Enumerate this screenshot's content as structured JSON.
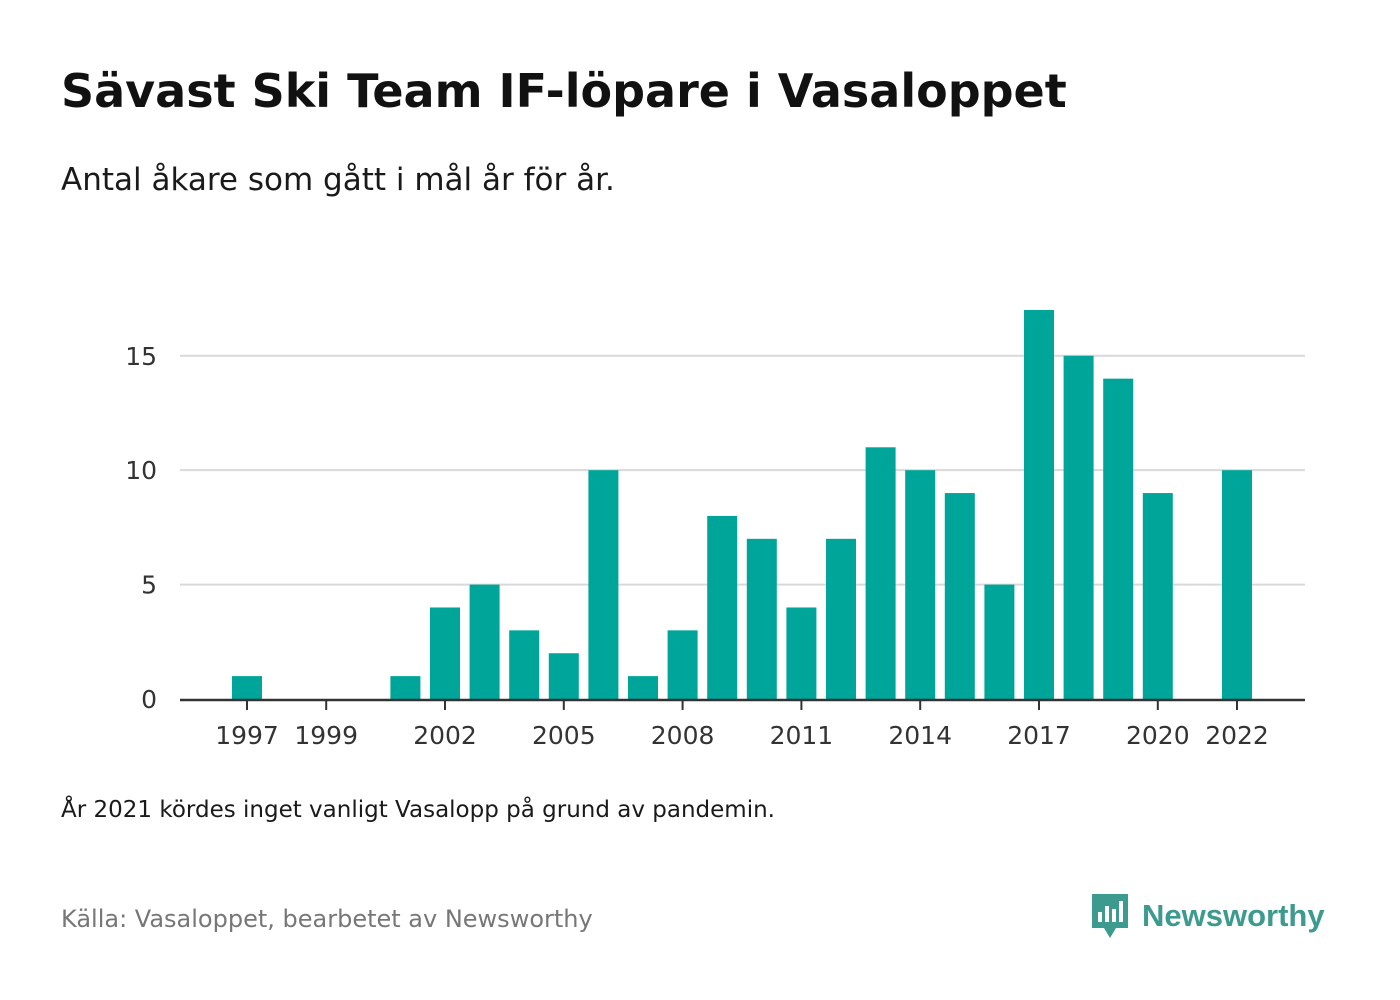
{
  "header": {
    "title": "Sävast Ski Team IF-löpare i Vasaloppet",
    "subtitle": "Antal åkare som gått i mål år för år."
  },
  "footer": {
    "note": "År 2021 kördes inget vanligt Vasalopp på grund av pandemin.",
    "source": "Källa: Vasaloppet, bearbetet av Newsworthy",
    "brand": "Newsworthy",
    "brand_icon": "newsworthy-logo-icon"
  },
  "colors": {
    "bar": "#00a59a",
    "grid": "#d9d9d9",
    "axis": "#333333",
    "brand": "#3c9a8e"
  },
  "chart_data": {
    "type": "bar",
    "title": "",
    "xlabel": "",
    "ylabel": "",
    "categories": [
      1997,
      1998,
      1999,
      2000,
      2001,
      2002,
      2003,
      2004,
      2005,
      2006,
      2007,
      2008,
      2009,
      2010,
      2011,
      2012,
      2013,
      2014,
      2015,
      2016,
      2017,
      2018,
      2019,
      2020,
      2021,
      2022
    ],
    "values": [
      1,
      0,
      0,
      0,
      1,
      4,
      5,
      3,
      2,
      10,
      1,
      3,
      8,
      7,
      4,
      7,
      11,
      10,
      9,
      5,
      17,
      15,
      14,
      9,
      0,
      10
    ],
    "x_tick_labels": [
      "1997",
      "1999",
      "2002",
      "2005",
      "2008",
      "2011",
      "2014",
      "2017",
      "2020",
      "2022"
    ],
    "y_ticks": [
      0,
      5,
      10,
      15
    ],
    "ylim": [
      0,
      17
    ],
    "grid": true,
    "legend": "none"
  }
}
